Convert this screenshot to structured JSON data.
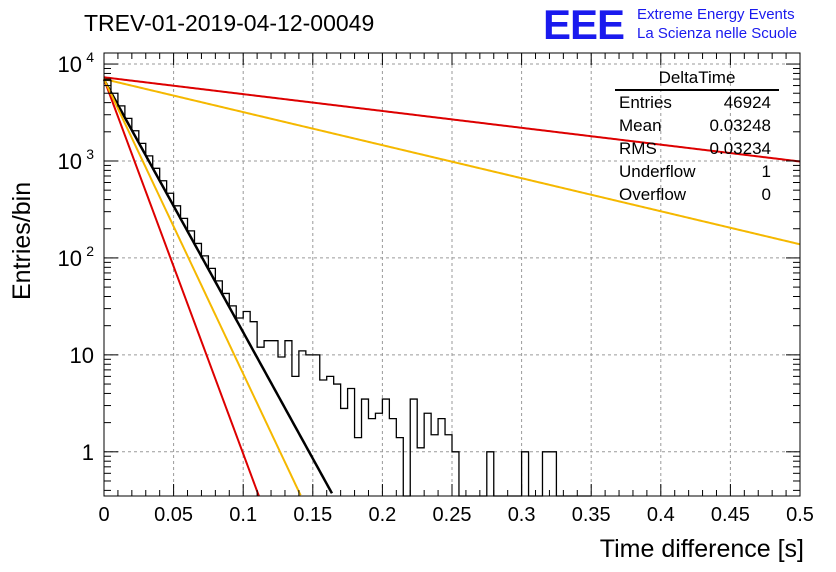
{
  "header": {
    "title": "TREV-01-2019-04-12-00049",
    "logo_text": "EEE",
    "logo_line1": "Extreme Energy Events",
    "logo_line2": "La Scienza nelle Scuole",
    "logo_color": "#1a1aee"
  },
  "stats_box": {
    "title": "DeltaTime",
    "rows": [
      {
        "label": "Entries",
        "value": "46924"
      },
      {
        "label": "Mean",
        "value": "0.03248"
      },
      {
        "label": "RMS",
        "value": "0.03234"
      },
      {
        "label": "Underflow",
        "value": "1"
      },
      {
        "label": "Overflow",
        "value": "0"
      }
    ]
  },
  "chart_data": {
    "type": "line",
    "xlabel": "Time difference [s]",
    "ylabel": "Entries/bin",
    "xlim": [
      0,
      0.5
    ],
    "ylim": [
      0.35,
      13000
    ],
    "y_scale": "log",
    "grid": true,
    "x_ticks": [
      "0",
      "0.05",
      "0.1",
      "0.15",
      "0.2",
      "0.25",
      "0.3",
      "0.35",
      "0.4",
      "0.45",
      "0.5"
    ],
    "y_ticks": [
      {
        "value": 1,
        "label": "1"
      },
      {
        "value": 10,
        "label": "10"
      },
      {
        "value": 100,
        "label": "10",
        "exp": "2"
      },
      {
        "value": 1000,
        "label": "10",
        "exp": "3"
      },
      {
        "value": 10000,
        "label": "10",
        "exp": "4"
      }
    ],
    "histogram": {
      "color": "#000000",
      "bin_width": 0.005,
      "counts": [
        6800,
        5000,
        3700,
        2750,
        2050,
        1520,
        1130,
        840,
        625,
        465,
        345,
        256,
        190,
        141,
        105,
        78,
        58,
        43,
        32,
        24,
        28,
        22,
        12,
        14,
        14,
        9.5,
        14,
        6,
        11,
        10,
        10,
        5.5,
        6,
        5,
        2.8,
        4.5,
        1.4,
        3.5,
        2.2,
        2.5,
        3.5,
        2.2,
        1.4,
        0.35,
        3.5,
        1.1,
        2.5,
        1.5,
        2.2,
        1.5,
        1,
        0.35,
        0.35,
        0.35,
        0.35,
        1,
        0.35,
        0.35,
        0.35,
        0.35,
        1,
        0.35,
        0.35,
        1,
        1,
        0.35,
        0.35,
        0.35,
        0.35,
        0.35
      ]
    },
    "series": [
      {
        "color": "#000000",
        "y0": 6900,
        "slope": 60
      },
      {
        "color": "#dd0000",
        "y0": 7300,
        "slope": 4.0
      },
      {
        "color": "#f5b800",
        "y0": 7000,
        "slope": 7.85
      },
      {
        "color": "#dd0000",
        "y0": 7000,
        "slope": 89
      },
      {
        "color": "#f5b800",
        "y0": 7000,
        "slope": 70
      }
    ]
  }
}
